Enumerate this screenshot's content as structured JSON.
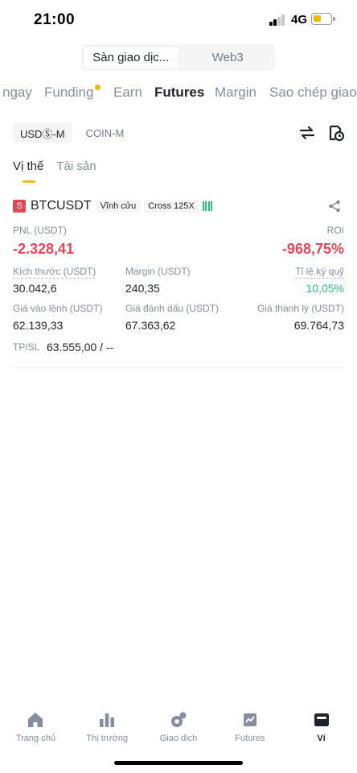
{
  "status_bar": {
    "time": "21:00",
    "network": "4G"
  },
  "segment": {
    "items": [
      "Sàn giao dịc...",
      "Web3"
    ],
    "active": 0
  },
  "category_tabs": [
    "ngay",
    "Funding",
    "Earn",
    "Futures",
    "Margin",
    "Sao chép giao"
  ],
  "active_category": "Futures",
  "sub_toggle": {
    "usdm": "USDⓈ-M",
    "coinm": "COIN-M"
  },
  "position_tabs": [
    "Vị thế",
    "Tài sản"
  ],
  "position": {
    "side": "S",
    "symbol": "BTCUSDT",
    "contract_type": "Vĩnh cửu",
    "leverage": "Cross 125X",
    "pnl_label": "PNL (USDT)",
    "pnl_value": "-2.328,41",
    "roi_label": "ROI",
    "roi_value": "-968,75%",
    "size_label": "Kích thước (USDT)",
    "size_value": "30.042,6",
    "margin_label": "Margin (USDT)",
    "margin_value": "240,35",
    "margin_ratio_label": "Tỉ lệ ký quỹ",
    "margin_ratio_value": "10,05%",
    "entry_label": "Giá vào lệnh (USDT)",
    "entry_value": "62.139,33",
    "mark_label": "Giá đánh dấu (USDT)",
    "mark_value": "67.363,62",
    "liq_label": "Giá thanh lý (USDT)",
    "liq_value": "69.764,73",
    "tpsl_label": "TP/SL",
    "tpsl_value": "63.555,00 / --"
  },
  "bottom_nav": [
    {
      "label": "Trang chủ",
      "icon": "home-icon"
    },
    {
      "label": "Thị trường",
      "icon": "market-icon"
    },
    {
      "label": "Giao dịch",
      "icon": "trade-icon"
    },
    {
      "label": "Futures",
      "icon": "futures-icon"
    },
    {
      "label": "Ví",
      "icon": "wallet-icon"
    }
  ],
  "active_nav": "Ví",
  "colors": {
    "accent": "#f0b90b",
    "negative": "#e04759",
    "positive": "#2ebd85"
  }
}
